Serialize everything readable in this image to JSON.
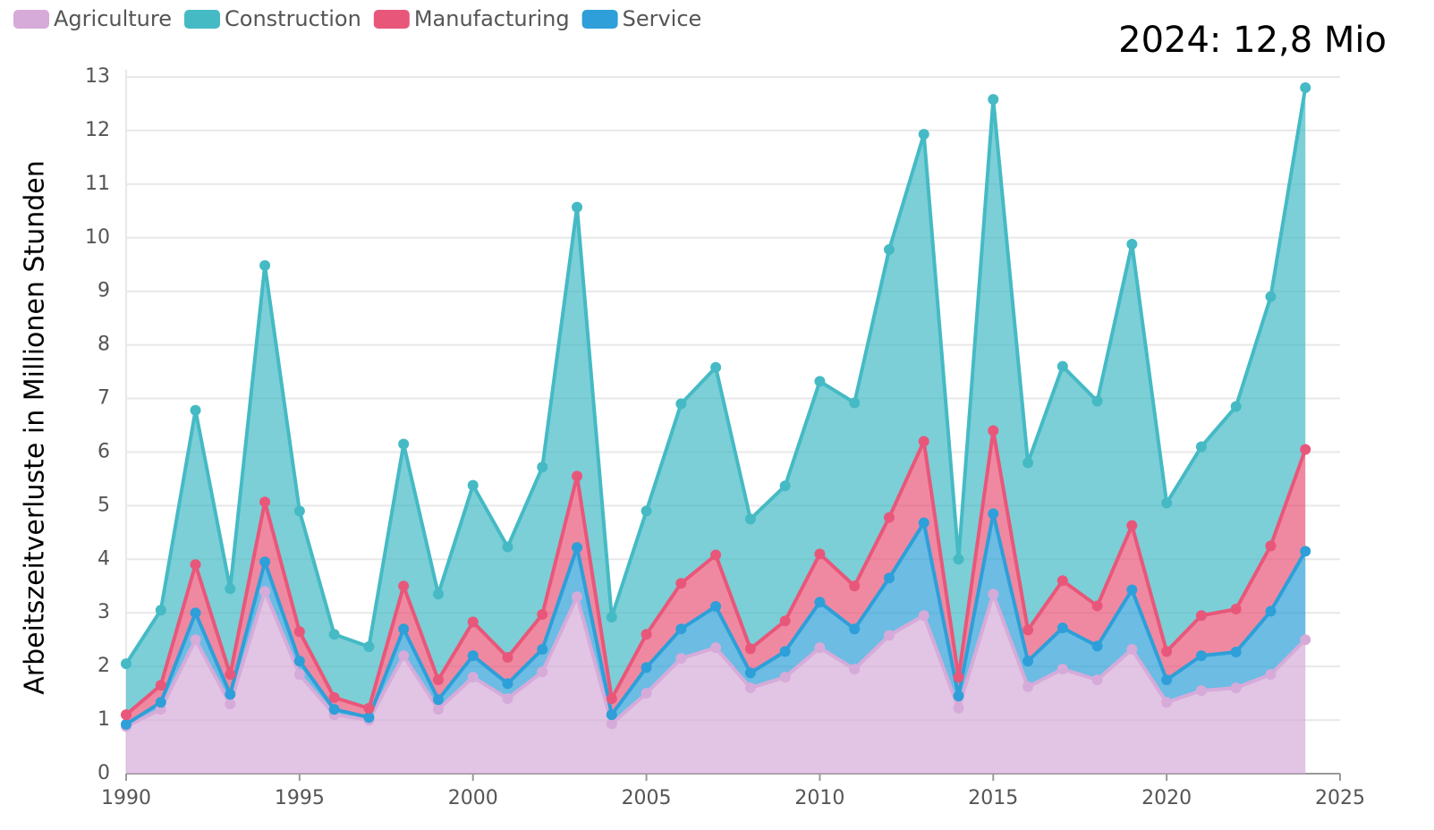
{
  "chart_data": {
    "type": "stacked_area",
    "annotation": "2024: 12,8 Mio",
    "y_label": "Arbeitszeitverluste in  Millionen Stunden",
    "x": [
      1990,
      1991,
      1992,
      1993,
      1994,
      1995,
      1996,
      1997,
      1998,
      1999,
      2000,
      2001,
      2002,
      2003,
      2004,
      2005,
      2006,
      2007,
      2008,
      2009,
      2010,
      2011,
      2012,
      2013,
      2014,
      2015,
      2016,
      2017,
      2018,
      2019,
      2020,
      2021,
      2022,
      2023,
      2024
    ],
    "series": [
      {
        "name": "Agriculture",
        "color": "#d6abd9",
        "values": [
          0.88,
          1.2,
          2.5,
          1.3,
          3.4,
          1.85,
          1.1,
          1.0,
          2.2,
          1.2,
          1.8,
          1.4,
          1.9,
          3.3,
          0.93,
          1.5,
          2.15,
          2.35,
          1.6,
          1.8,
          2.35,
          1.95,
          2.58,
          2.95,
          1.22,
          3.35,
          1.62,
          1.95,
          1.75,
          2.32,
          1.33,
          1.55,
          1.6,
          1.85,
          2.5
        ]
      },
      {
        "name": "Construction",
        "color": "#45bac5",
        "values": [
          0.95,
          1.4,
          2.88,
          1.6,
          4.41,
          2.25,
          1.18,
          1.15,
          2.65,
          1.6,
          2.55,
          2.06,
          2.75,
          5.02,
          1.52,
          2.3,
          3.35,
          3.5,
          2.42,
          2.52,
          3.22,
          3.42,
          5.0,
          5.73,
          2.2,
          6.18,
          3.12,
          4.0,
          3.82,
          5.25,
          2.77,
          3.15,
          3.78,
          4.65,
          6.75
        ]
      },
      {
        "name": "Manufacturing",
        "color": "#e8577a",
        "values": [
          0.18,
          0.32,
          0.9,
          0.37,
          1.12,
          0.55,
          0.22,
          0.17,
          0.8,
          0.37,
          0.63,
          0.49,
          0.65,
          1.33,
          0.3,
          0.62,
          0.85,
          0.96,
          0.45,
          0.57,
          0.9,
          0.8,
          1.13,
          1.52,
          0.35,
          1.55,
          0.58,
          0.88,
          0.75,
          1.2,
          0.53,
          0.75,
          0.8,
          1.22,
          1.9
        ]
      },
      {
        "name": "Service",
        "color": "#2e9fd8",
        "values": [
          0.04,
          0.13,
          0.5,
          0.18,
          0.55,
          0.25,
          0.1,
          0.05,
          0.5,
          0.18,
          0.4,
          0.28,
          0.42,
          0.92,
          0.17,
          0.48,
          0.55,
          0.77,
          0.28,
          0.48,
          0.85,
          0.75,
          1.07,
          1.73,
          0.23,
          1.5,
          0.48,
          0.77,
          0.63,
          1.11,
          0.42,
          0.65,
          0.67,
          1.18,
          1.65
        ]
      }
    ],
    "xlim": [
      1990,
      2025
    ],
    "xticks": [
      1990,
      1995,
      2000,
      2005,
      2010,
      2015,
      2020,
      2025
    ],
    "ylim": [
      0,
      13
    ],
    "yticks": [
      0,
      1,
      2,
      3,
      4,
      5,
      6,
      7,
      8,
      9,
      10,
      11,
      12,
      13
    ],
    "grid": true
  }
}
